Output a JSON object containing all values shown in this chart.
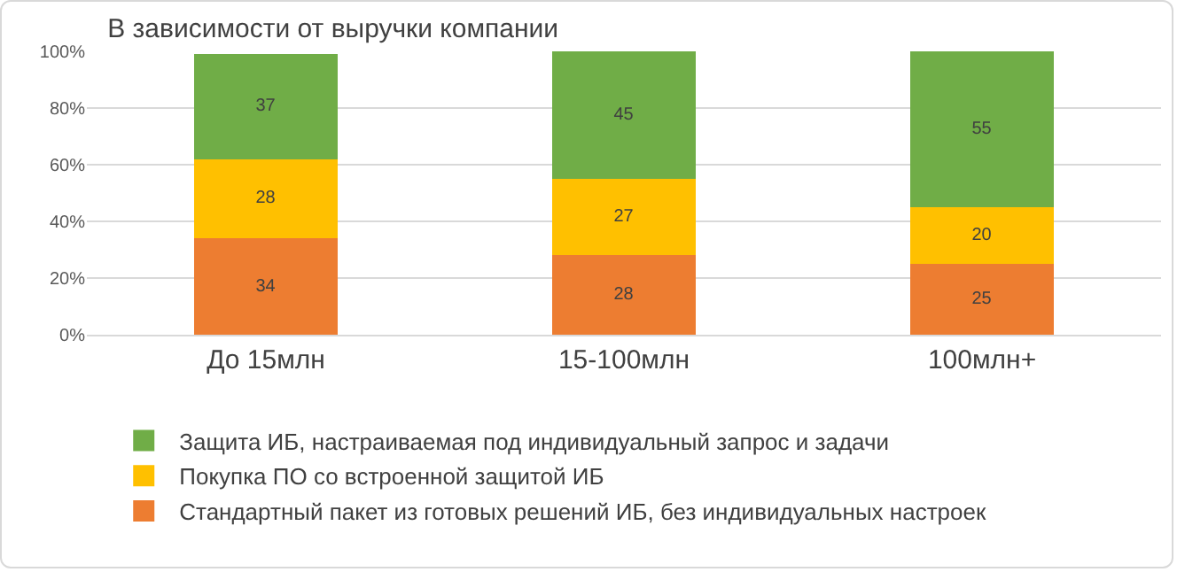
{
  "chart_data": {
    "type": "bar",
    "title": "В зависимости от выручки компании",
    "categories": [
      "До 15млн",
      "15-100млн",
      "100млн+"
    ],
    "stacked": true,
    "series": [
      {
        "name": "Стандартный пакет из готовых решений ИБ, без индивидуальных настроек",
        "color": "#ed7d31",
        "values": [
          34,
          28,
          25
        ]
      },
      {
        "name": "Покупка ПО со встроенной защитой ИБ",
        "color": "#ffc000",
        "values": [
          28,
          27,
          20
        ]
      },
      {
        "name": "Защита ИБ, настраиваемая под индивидуальный запрос и задачи",
        "color": "#70ad47",
        "values": [
          37,
          45,
          55
        ]
      }
    ],
    "ylim": [
      0,
      100
    ],
    "yticks": [
      {
        "value": 0,
        "label": "0%"
      },
      {
        "value": 20,
        "label": "20%"
      },
      {
        "value": 40,
        "label": "40%"
      },
      {
        "value": 60,
        "label": "60%"
      },
      {
        "value": 80,
        "label": "80%"
      },
      {
        "value": 100,
        "label": "100%"
      }
    ],
    "grid": "y",
    "legend": "bottom",
    "data_labels": true
  }
}
